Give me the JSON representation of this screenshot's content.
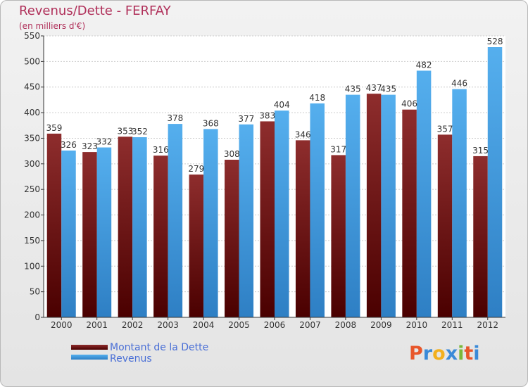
{
  "chart_data": {
    "type": "bar",
    "title": "Revenus/Dette - FERFAY",
    "subtitle": "(en milliers d'€)",
    "categories": [
      "2000",
      "2001",
      "2002",
      "2003",
      "2004",
      "2005",
      "2006",
      "2007",
      "2008",
      "2009",
      "2010",
      "2011",
      "2012"
    ],
    "series": [
      {
        "name": "Montant de la Dette",
        "color": "#7a1c1c",
        "values": [
          359,
          323,
          353,
          316,
          279,
          308,
          383,
          346,
          317,
          437,
          406,
          357,
          315
        ]
      },
      {
        "name": "Revenus",
        "color": "#4aa6e8",
        "values": [
          326,
          332,
          352,
          378,
          368,
          377,
          404,
          418,
          435,
          435,
          482,
          446,
          528
        ]
      }
    ],
    "ylim": [
      0,
      550
    ],
    "yticks": [
      0,
      50,
      100,
      150,
      200,
      250,
      300,
      350,
      400,
      450,
      500,
      550
    ],
    "grid": true,
    "legend": "bottom-left"
  },
  "logo": {
    "letters": [
      "P",
      "r",
      "o",
      "x",
      "i",
      "t",
      "i"
    ],
    "colors": [
      "#e8562a",
      "#3a8ad8",
      "#f2b01e",
      "#3a8ad8",
      "#7ab83a",
      "#e8562a",
      "#3a8ad8"
    ]
  }
}
